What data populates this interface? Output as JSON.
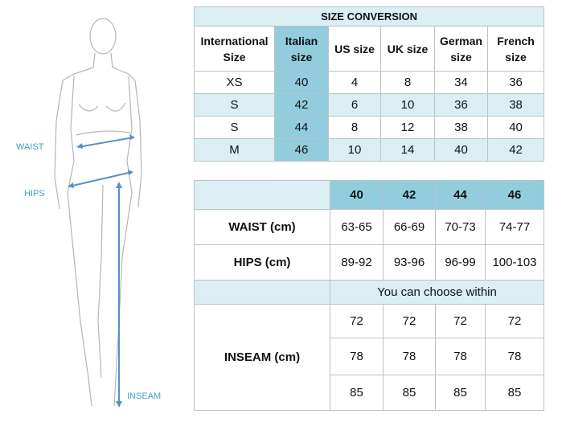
{
  "figure_labels": {
    "waist": "WAIST",
    "hips": "HIPS",
    "inseam": "INSEAM"
  },
  "size_conversion": {
    "title": "SIZE CONVERSION",
    "headers": [
      "International Size",
      "Italian size",
      "US size",
      "UK size",
      "German size",
      "French size"
    ],
    "rows": [
      [
        "XS",
        40,
        4,
        8,
        34,
        36
      ],
      [
        "S",
        42,
        6,
        10,
        36,
        38
      ],
      [
        "S",
        44,
        8,
        12,
        38,
        40
      ],
      [
        "M",
        46,
        10,
        14,
        40,
        42
      ]
    ]
  },
  "measurements": {
    "sizes": [
      40,
      42,
      44,
      46
    ],
    "rows": [
      {
        "label": "WAIST (cm)",
        "values": [
          "63-65",
          "66-69",
          "70-73",
          "74-77"
        ]
      },
      {
        "label": "HIPS (cm)",
        "values": [
          "89-92",
          "93-96",
          "96-99",
          "100-103"
        ]
      }
    ],
    "note": "You can choose within",
    "inseam": {
      "label": "INSEAM (cm)",
      "values": [
        [
          72,
          72,
          72,
          72
        ],
        [
          78,
          78,
          78,
          78
        ],
        [
          85,
          85,
          85,
          85
        ]
      ]
    }
  }
}
